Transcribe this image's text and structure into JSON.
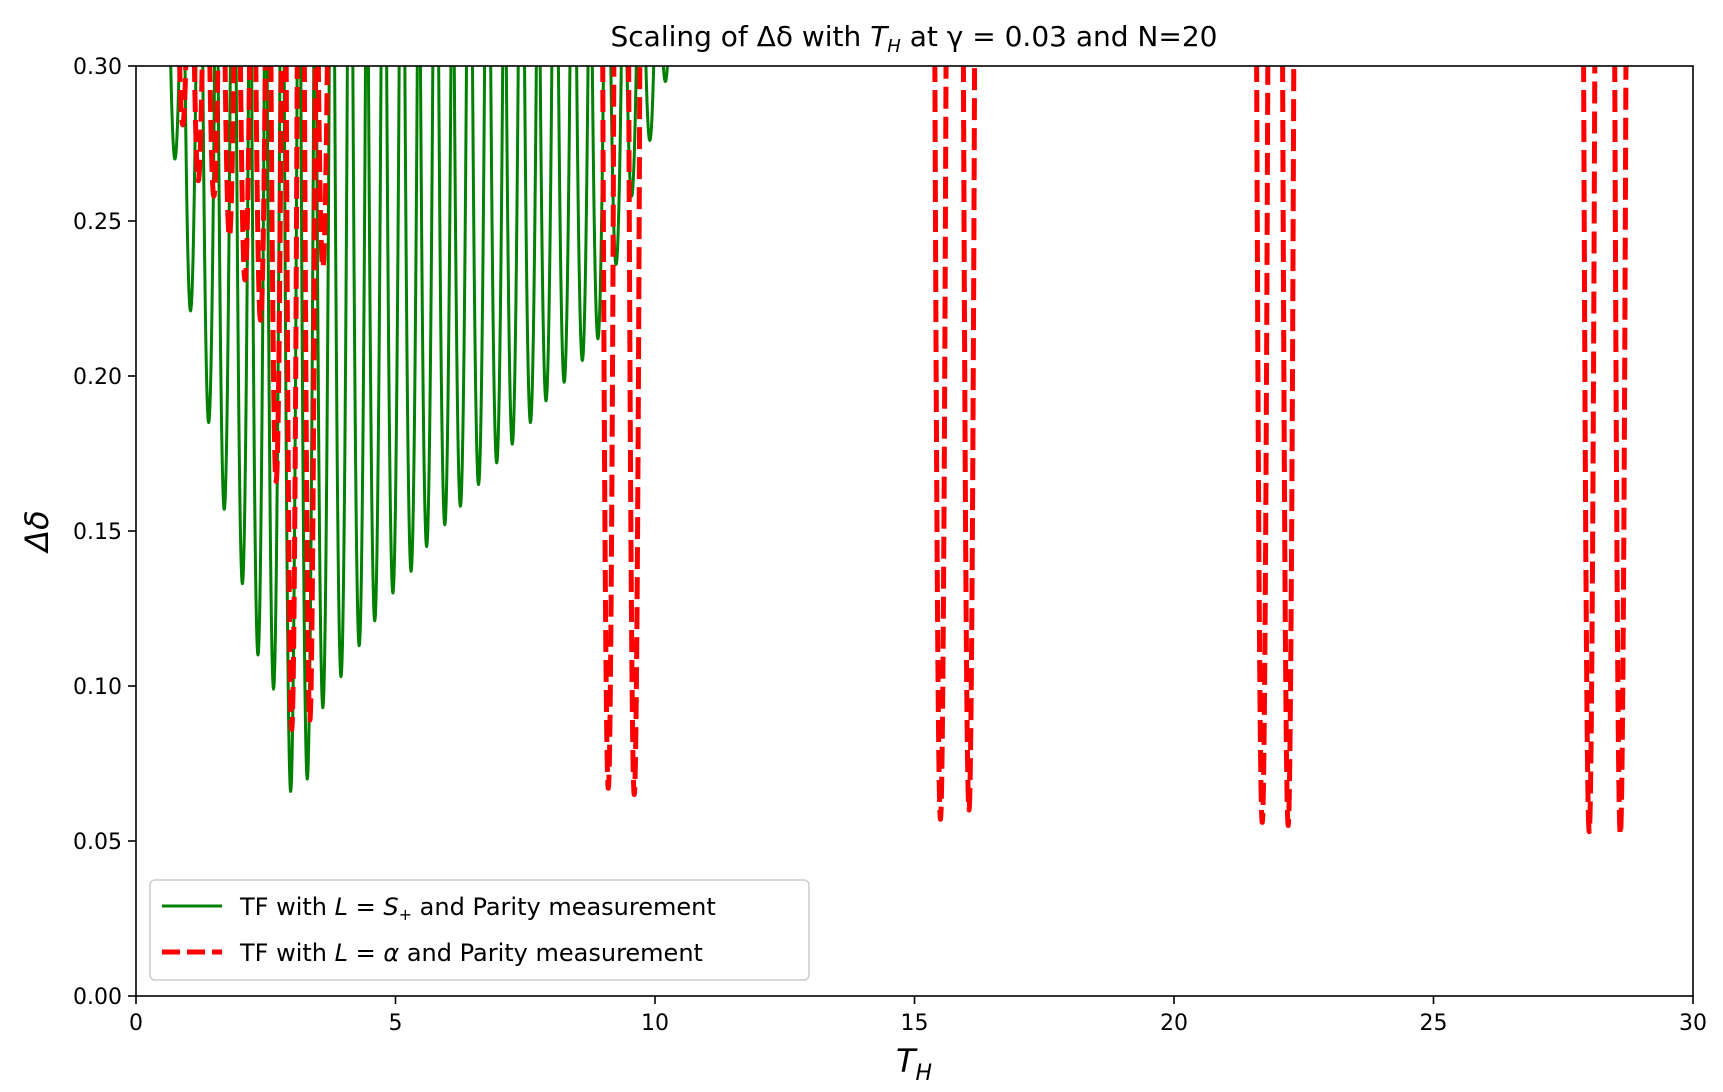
{
  "chart_data": {
    "type": "line",
    "title": "Scaling of Δδ with Tₕ at γ = 0.03 and N=20",
    "title_parts": [
      "Scaling of Δδ with ",
      "T",
      "H",
      " at γ = 0.03 and N=20"
    ],
    "xlabel": "T",
    "xlabel_sub": "H",
    "ylabel": "Δδ",
    "xlim": [
      0,
      30
    ],
    "ylim": [
      0,
      0.3
    ],
    "xticks": [
      0,
      5,
      10,
      15,
      20,
      25,
      30
    ],
    "xtick_labels": [
      "0",
      "5",
      "10",
      "15",
      "20",
      "25",
      "30"
    ],
    "yticks": [
      0.0,
      0.05,
      0.1,
      0.15,
      0.2,
      0.25,
      0.3
    ],
    "ytick_labels": [
      "0.00",
      "0.05",
      "0.10",
      "0.15",
      "0.20",
      "0.25",
      "0.30"
    ],
    "grid": false,
    "legend_position": "lower-left",
    "series": [
      {
        "name": "TF with L = S₊ and Parity measurement",
        "legend_parts": [
          "TF with ",
          "L",
          " = ",
          "S",
          "+",
          " and Parity measurement"
        ],
        "color": "#008000",
        "style": "solid",
        "description": "dense oscillation with sharp minima",
        "minima": [
          {
            "x": 0.75,
            "y": 0.27
          },
          {
            "x": 1.05,
            "y": 0.221
          },
          {
            "x": 1.4,
            "y": 0.185
          },
          {
            "x": 1.7,
            "y": 0.157
          },
          {
            "x": 2.05,
            "y": 0.133
          },
          {
            "x": 2.35,
            "y": 0.11
          },
          {
            "x": 2.65,
            "y": 0.099
          },
          {
            "x": 2.98,
            "y": 0.066
          },
          {
            "x": 3.3,
            "y": 0.07
          },
          {
            "x": 3.6,
            "y": 0.093
          },
          {
            "x": 3.95,
            "y": 0.103
          },
          {
            "x": 4.3,
            "y": 0.113
          },
          {
            "x": 4.6,
            "y": 0.121
          },
          {
            "x": 4.95,
            "y": 0.13
          },
          {
            "x": 5.3,
            "y": 0.137
          },
          {
            "x": 5.6,
            "y": 0.145
          },
          {
            "x": 5.95,
            "y": 0.152
          },
          {
            "x": 6.25,
            "y": 0.158
          },
          {
            "x": 6.6,
            "y": 0.165
          },
          {
            "x": 6.95,
            "y": 0.172
          },
          {
            "x": 7.25,
            "y": 0.178
          },
          {
            "x": 7.6,
            "y": 0.185
          },
          {
            "x": 7.9,
            "y": 0.192
          },
          {
            "x": 8.25,
            "y": 0.198
          },
          {
            "x": 8.6,
            "y": 0.205
          },
          {
            "x": 8.9,
            "y": 0.212
          },
          {
            "x": 9.25,
            "y": 0.236
          },
          {
            "x": 9.55,
            "y": 0.258
          },
          {
            "x": 9.9,
            "y": 0.276
          },
          {
            "x": 10.2,
            "y": 0.295
          }
        ]
      },
      {
        "name": "TF with L = α and Parity measurement",
        "legend_parts": [
          "TF with ",
          "L",
          " = ",
          "α",
          " and Parity measurement"
        ],
        "color": "#ff0000",
        "style": "dashed",
        "description": "pairs of deep revivals",
        "minima": [
          {
            "x": 0.9,
            "y": 0.281
          },
          {
            "x": 1.2,
            "y": 0.263
          },
          {
            "x": 1.5,
            "y": 0.258
          },
          {
            "x": 1.8,
            "y": 0.245
          },
          {
            "x": 2.1,
            "y": 0.231
          },
          {
            "x": 2.4,
            "y": 0.218
          },
          {
            "x": 2.7,
            "y": 0.166
          },
          {
            "x": 3.0,
            "y": 0.086
          },
          {
            "x": 3.35,
            "y": 0.089
          },
          {
            "x": 3.6,
            "y": 0.235
          },
          {
            "x": 9.1,
            "y": 0.067
          },
          {
            "x": 9.6,
            "y": 0.065
          },
          {
            "x": 15.5,
            "y": 0.057
          },
          {
            "x": 16.05,
            "y": 0.06
          },
          {
            "x": 21.7,
            "y": 0.056
          },
          {
            "x": 22.2,
            "y": 0.055
          },
          {
            "x": 28.0,
            "y": 0.053
          },
          {
            "x": 28.6,
            "y": 0.052
          }
        ]
      }
    ]
  }
}
